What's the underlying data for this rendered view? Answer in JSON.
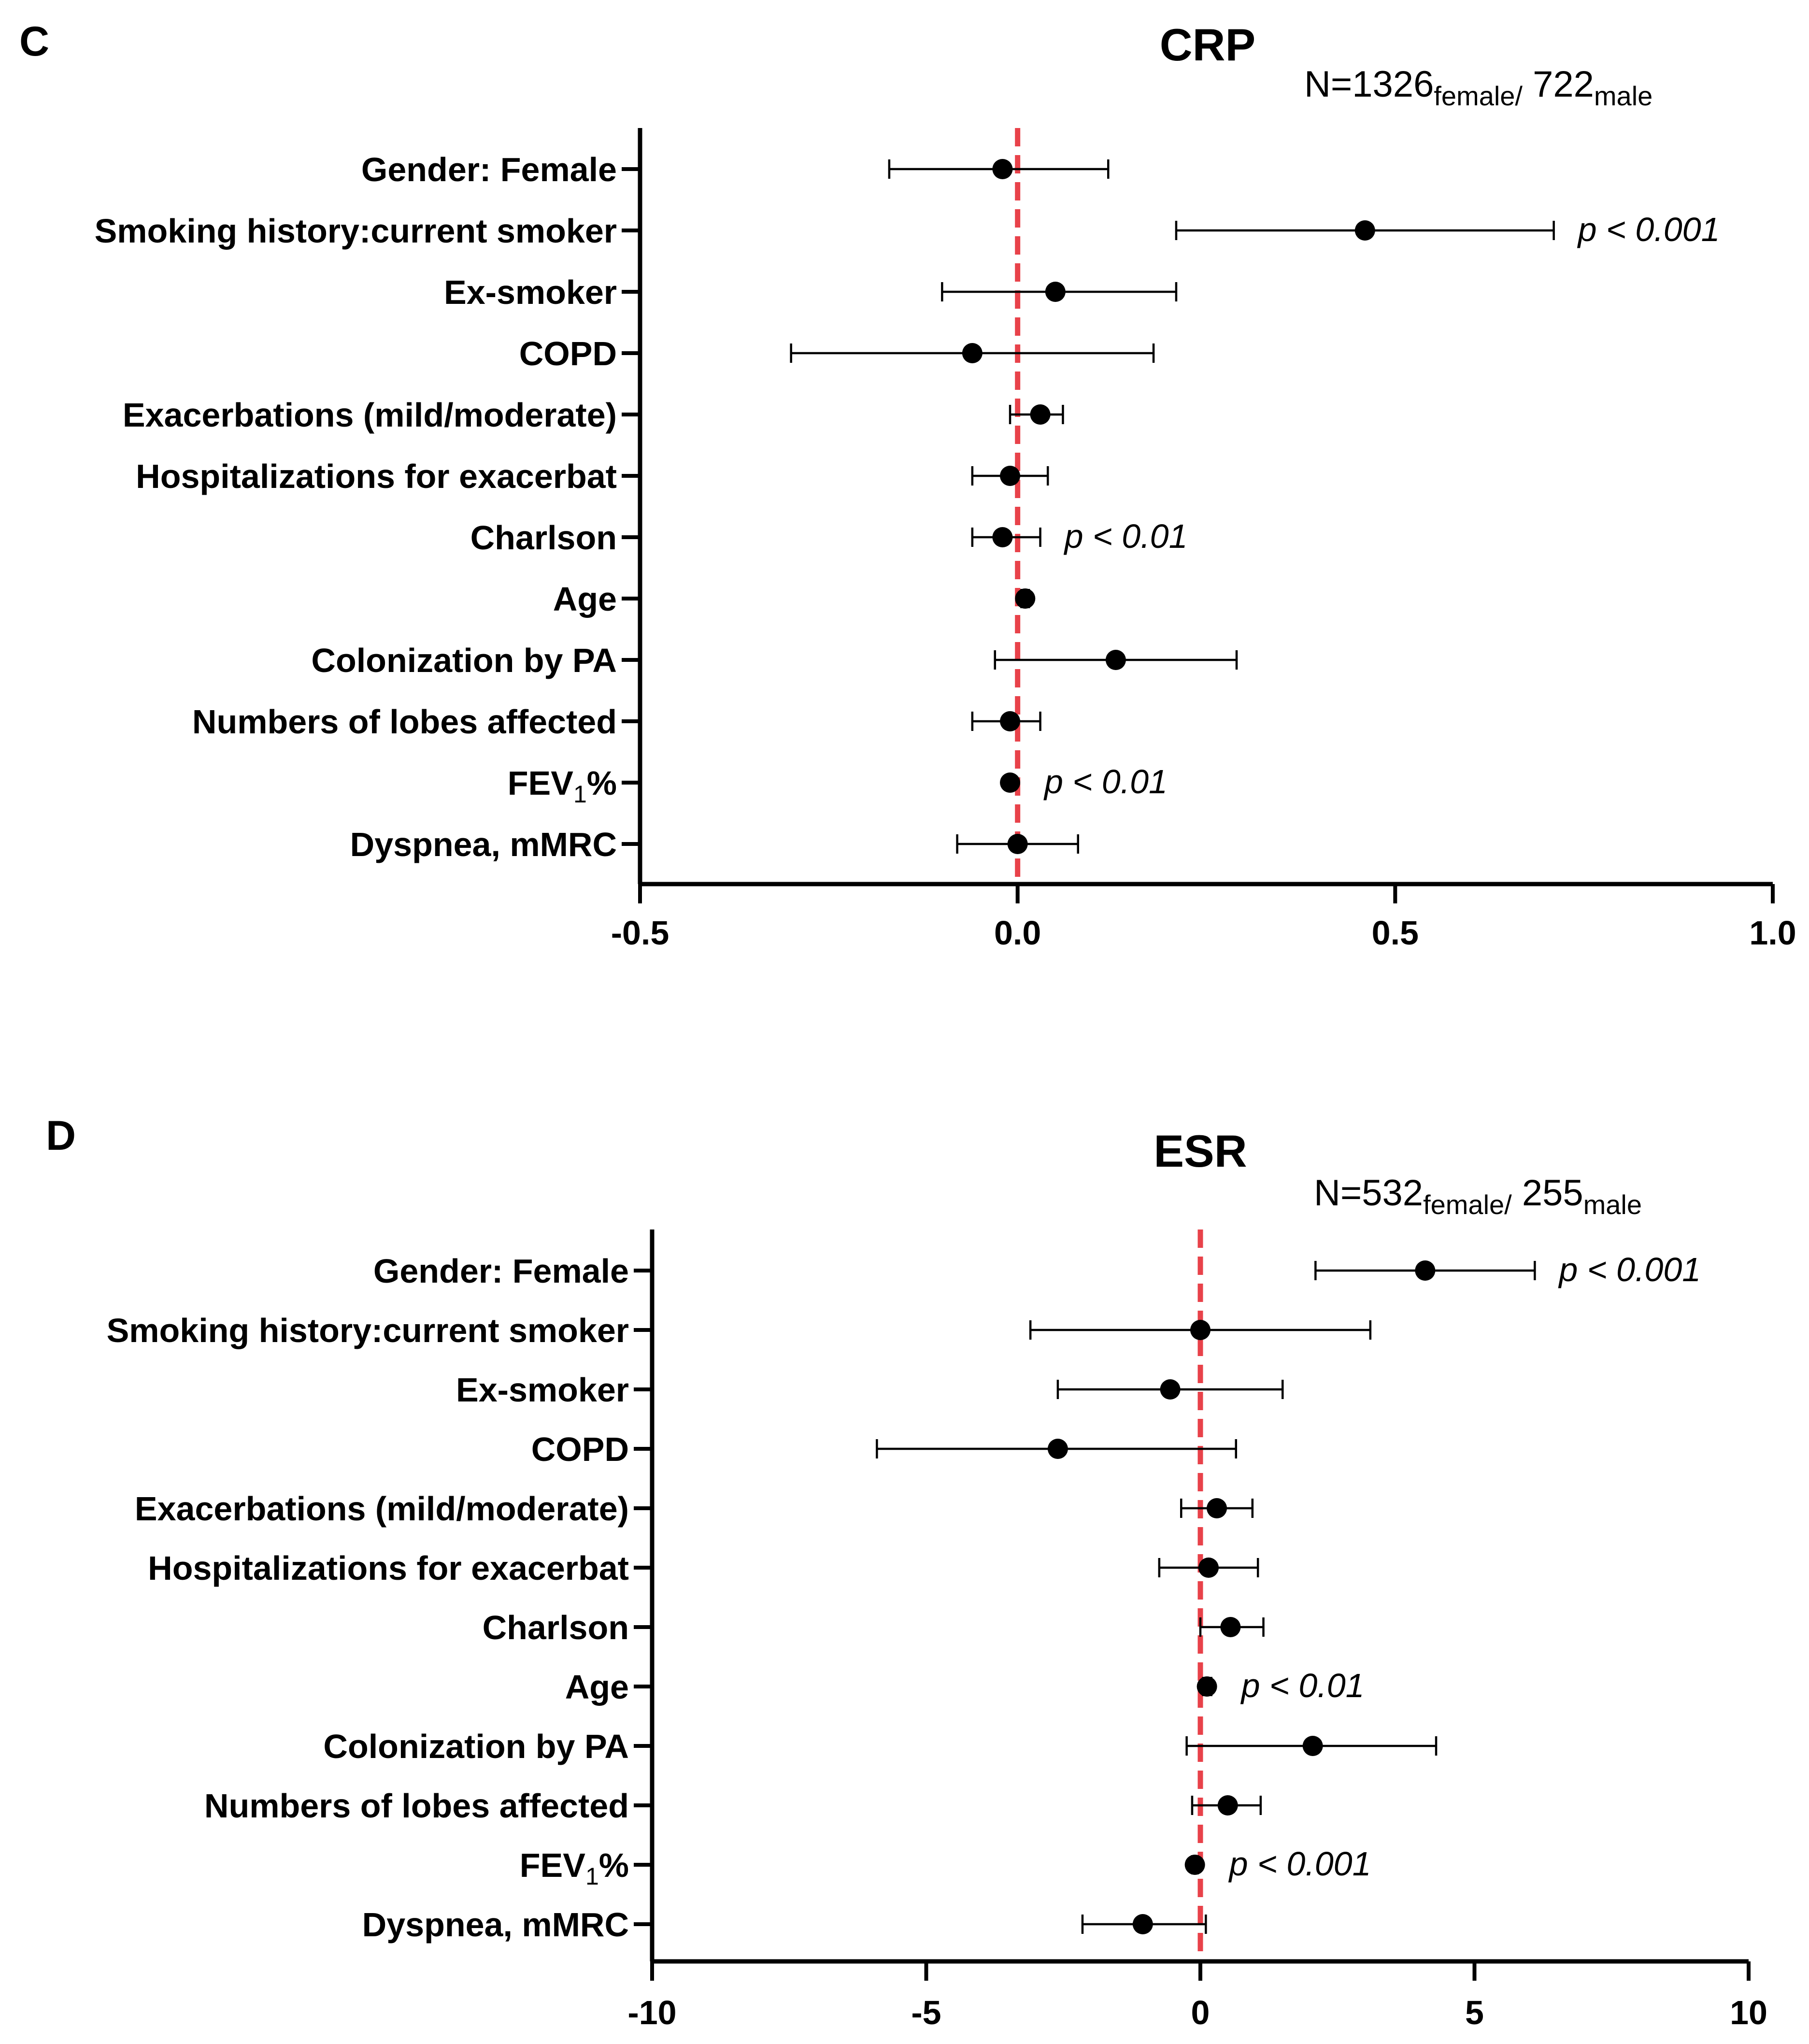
{
  "chart_data": [
    {
      "type": "forest",
      "panel": "C",
      "title": "CRP",
      "n_annotation": {
        "prefix": "N=",
        "n1": "1326",
        "n1_sub": "female/",
        "n2": " 722",
        "n2_sub": "male"
      },
      "xlim": [
        -0.5,
        1.0
      ],
      "xticks": [
        "-0.5",
        "0.0",
        "0.5",
        "1.0"
      ],
      "xtick_values": [
        -0.5,
        0.0,
        0.5,
        1.0
      ],
      "reference_line": 0.0,
      "rows": [
        {
          "label": "Gender: Female",
          "estimate": -0.02,
          "lower": -0.17,
          "upper": 0.12,
          "pvalue": ""
        },
        {
          "label": "Smoking history:current smoker",
          "estimate": 0.46,
          "lower": 0.21,
          "upper": 0.71,
          "pvalue": "p < 0.001"
        },
        {
          "label": "Ex-smoker",
          "estimate": 0.05,
          "lower": -0.1,
          "upper": 0.21,
          "pvalue": ""
        },
        {
          "label": "COPD",
          "estimate": -0.06,
          "lower": -0.3,
          "upper": 0.18,
          "pvalue": ""
        },
        {
          "label": "Exacerbations (mild/moderate)",
          "estimate": 0.03,
          "lower": -0.01,
          "upper": 0.06,
          "pvalue": ""
        },
        {
          "label": "Hospitalizations for exacerbat",
          "estimate": -0.01,
          "lower": -0.06,
          "upper": 0.04,
          "pvalue": ""
        },
        {
          "label": "Charlson",
          "estimate": -0.02,
          "lower": -0.06,
          "upper": 0.03,
          "pvalue": "p < 0.01"
        },
        {
          "label": "Age",
          "estimate": 0.01,
          "lower": 0.005,
          "upper": 0.015,
          "pvalue": ""
        },
        {
          "label": "Colonization by PA",
          "estimate": 0.13,
          "lower": -0.03,
          "upper": 0.29,
          "pvalue": ""
        },
        {
          "label": "Numbers of lobes affected",
          "estimate": -0.01,
          "lower": -0.06,
          "upper": 0.03,
          "pvalue": ""
        },
        {
          "label": "FEV",
          "label_sub": "1",
          "label_suffix": "%",
          "estimate": -0.01,
          "lower": -0.012,
          "upper": -0.008,
          "pvalue": "p < 0.01"
        },
        {
          "label": "Dyspnea, mMRC",
          "estimate": 0.0,
          "lower": -0.08,
          "upper": 0.08,
          "pvalue": ""
        }
      ]
    },
    {
      "type": "forest",
      "panel": "D",
      "title": "ESR",
      "n_annotation": {
        "prefix": "N=",
        "n1": "532",
        "n1_sub": "female/",
        "n2": " 255",
        "n2_sub": "male"
      },
      "xlim": [
        -10,
        10
      ],
      "xticks": [
        "-10",
        "-5",
        "0",
        "5",
        "10"
      ],
      "xtick_values": [
        -10,
        -5,
        0,
        5,
        10
      ],
      "reference_line": 0,
      "rows": [
        {
          "label": "Gender: Female",
          "estimate": 4.1,
          "lower": 2.1,
          "upper": 6.1,
          "pvalue": "p < 0.001"
        },
        {
          "label": "Smoking history:current smoker",
          "estimate": 0.0,
          "lower": -3.1,
          "upper": 3.1,
          "pvalue": ""
        },
        {
          "label": "Ex-smoker",
          "estimate": -0.55,
          "lower": -2.6,
          "upper": 1.5,
          "pvalue": ""
        },
        {
          "label": "COPD",
          "estimate": -2.6,
          "lower": -5.9,
          "upper": 0.65,
          "pvalue": ""
        },
        {
          "label": "Exacerbations (mild/moderate)",
          "estimate": 0.3,
          "lower": -0.35,
          "upper": 0.95,
          "pvalue": ""
        },
        {
          "label": "Hospitalizations for exacerbat",
          "estimate": 0.15,
          "lower": -0.75,
          "upper": 1.05,
          "pvalue": ""
        },
        {
          "label": "Charlson",
          "estimate": 0.55,
          "lower": 0.0,
          "upper": 1.15,
          "pvalue": ""
        },
        {
          "label": "Age",
          "estimate": 0.12,
          "lower": 0.05,
          "upper": 0.2,
          "pvalue": "p < 0.01"
        },
        {
          "label": "Colonization by PA",
          "estimate": 2.05,
          "lower": -0.25,
          "upper": 4.3,
          "pvalue": ""
        },
        {
          "label": "Numbers of lobes affected",
          "estimate": 0.5,
          "lower": -0.15,
          "upper": 1.1,
          "pvalue": ""
        },
        {
          "label": "FEV",
          "label_sub": "1",
          "label_suffix": "%",
          "estimate": -0.1,
          "lower": -0.15,
          "upper": -0.05,
          "pvalue": "p < 0.001"
        },
        {
          "label": "Dyspnea, mMRC",
          "estimate": -1.05,
          "lower": -2.15,
          "upper": 0.1,
          "pvalue": ""
        }
      ]
    }
  ]
}
